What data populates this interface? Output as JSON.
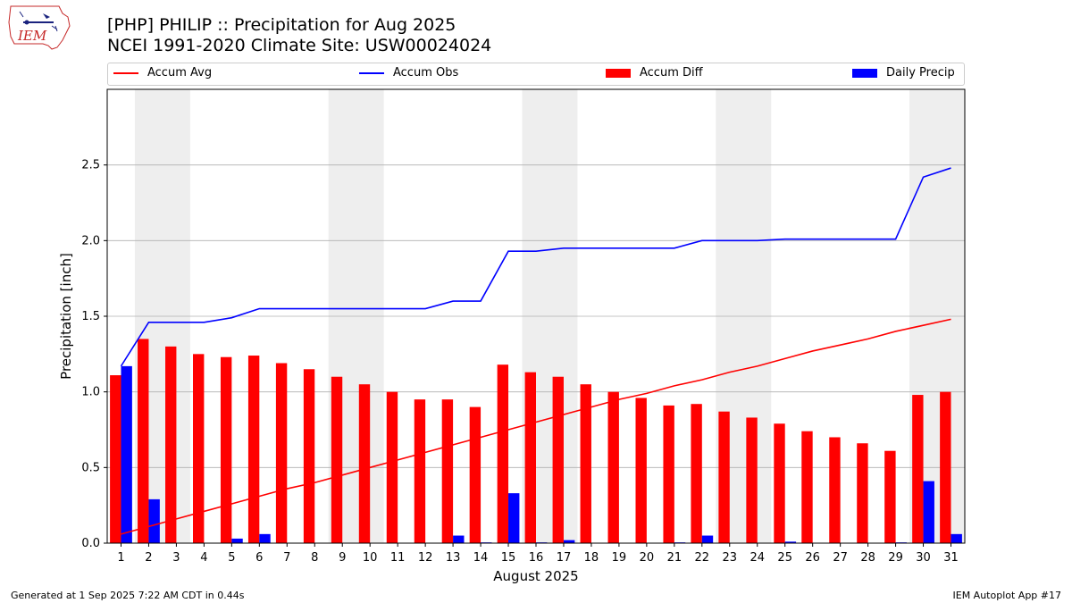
{
  "header": {
    "title_line1": "[PHP] PHILIP :: Precipitation for Aug 2025",
    "title_line2": "NCEI 1991-2020 Climate Site: USW00024024",
    "logo_text": "IEM"
  },
  "footer": {
    "generated": "Generated at 1 Sep 2025 7:22 AM CDT in 0.44s",
    "app": "IEM Autoplot App #17"
  },
  "colors": {
    "accum_avg": "#ff0000",
    "accum_obs": "#0000ff",
    "accum_diff": "#ff0000",
    "daily_precip": "#0000ff",
    "weekend_shade": "#eeeeee",
    "grid": "#b0b0b0"
  },
  "chart_data": {
    "type": "bar",
    "xlabel": "August 2025",
    "ylabel": "Precipitation [inch]",
    "ylim": [
      0,
      3.0
    ],
    "yticks": [
      0.0,
      0.5,
      1.0,
      1.5,
      2.0,
      2.5
    ],
    "ytick_labels": [
      "0.0",
      "0.5",
      "1.0",
      "1.5",
      "2.0",
      "2.5"
    ],
    "grid": "y",
    "legend_position": "top",
    "categories": [
      "1",
      "2",
      "3",
      "4",
      "5",
      "6",
      "7",
      "8",
      "9",
      "10",
      "11",
      "12",
      "13",
      "14",
      "15",
      "16",
      "17",
      "18",
      "19",
      "20",
      "21",
      "22",
      "23",
      "24",
      "25",
      "26",
      "27",
      "28",
      "29",
      "30",
      "31"
    ],
    "shaded_days": [
      [
        2,
        3
      ],
      [
        9,
        10
      ],
      [
        16,
        17
      ],
      [
        23,
        24
      ],
      [
        30,
        31
      ]
    ],
    "series": [
      {
        "name": "Accum Avg",
        "kind": "line",
        "values": [
          0.06,
          0.11,
          0.16,
          0.21,
          0.26,
          0.31,
          0.36,
          0.4,
          0.45,
          0.5,
          0.55,
          0.6,
          0.65,
          0.7,
          0.75,
          0.8,
          0.85,
          0.9,
          0.95,
          0.99,
          1.04,
          1.08,
          1.13,
          1.17,
          1.22,
          1.27,
          1.31,
          1.35,
          1.4,
          1.44,
          1.48
        ]
      },
      {
        "name": "Accum Obs",
        "kind": "line",
        "values": [
          1.17,
          1.46,
          1.46,
          1.46,
          1.49,
          1.55,
          1.55,
          1.55,
          1.55,
          1.55,
          1.55,
          1.55,
          1.6,
          1.6,
          1.93,
          1.93,
          1.95,
          1.95,
          1.95,
          1.95,
          1.95,
          2.0,
          2.0,
          2.0,
          2.01,
          2.01,
          2.01,
          2.01,
          2.01,
          2.42,
          2.48
        ]
      },
      {
        "name": "Accum Diff",
        "kind": "bar",
        "values": [
          1.11,
          1.35,
          1.3,
          1.25,
          1.23,
          1.24,
          1.19,
          1.15,
          1.1,
          1.05,
          1.0,
          0.95,
          0.95,
          0.9,
          1.18,
          1.13,
          1.1,
          1.05,
          1.0,
          0.96,
          0.91,
          0.92,
          0.87,
          0.83,
          0.79,
          0.74,
          0.7,
          0.66,
          0.61,
          0.98,
          1.0
        ]
      },
      {
        "name": "Daily Precip",
        "kind": "bar",
        "values": [
          1.17,
          0.29,
          0.0,
          0.0,
          0.03,
          0.06,
          0.0,
          0.0,
          0.0,
          0.0,
          0.0,
          0.0,
          0.05,
          0.005,
          0.33,
          0.005,
          0.02,
          0.0,
          0.0,
          0.0,
          0.005,
          0.05,
          0.0,
          0.0,
          0.01,
          0.0,
          0.0,
          0.0,
          0.005,
          0.41,
          0.06
        ]
      }
    ]
  }
}
